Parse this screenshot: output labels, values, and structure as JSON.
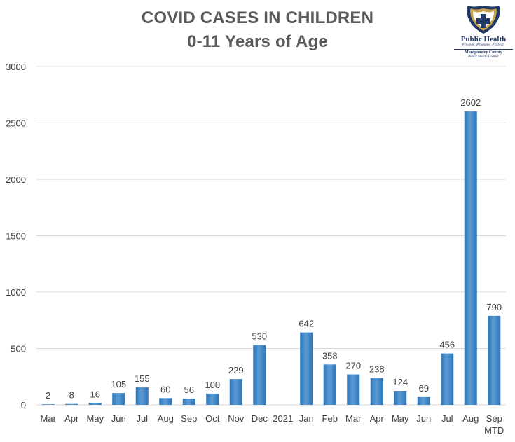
{
  "chart_data": {
    "type": "bar",
    "title": "COVID CASES IN CHILDREN",
    "subtitle": "0-11 Years of Age",
    "xlabel": "",
    "ylabel": "",
    "ylim": [
      0,
      3000
    ],
    "yticks": [
      0,
      500,
      1000,
      1500,
      2000,
      2500,
      3000
    ],
    "grid": true,
    "legend": "none",
    "categories": [
      "Mar",
      "Apr",
      "May",
      "Jun",
      "Jul",
      "Aug",
      "Sep",
      "Oct",
      "Nov",
      "Dec",
      "2021",
      "Jan",
      "Feb",
      "Mar",
      "Apr",
      "May",
      "Jun",
      "Jul",
      "Aug",
      "Sep MTD"
    ],
    "values": [
      2,
      8,
      16,
      105,
      155,
      60,
      56,
      100,
      229,
      530,
      null,
      642,
      358,
      270,
      238,
      124,
      69,
      456,
      2602,
      790
    ],
    "data_labels": [
      "2",
      "8",
      "16",
      "105",
      "155",
      "60",
      "56",
      "100",
      "229",
      "530",
      "",
      "642",
      "358",
      "270",
      "238",
      "124",
      "69",
      "456",
      "2602",
      "790"
    ]
  },
  "logo": {
    "name": "Public Health",
    "tagline": "Prevent. Promote. Protect.",
    "county": "Montgomery County",
    "district": "Public Health District"
  },
  "colors": {
    "bar": "#5b9bd5",
    "bar_dark": "#2e75b6",
    "grid": "#d9d9d9",
    "text": "#404040",
    "title": "#595959",
    "logo_navy": "#1f3864",
    "logo_gold": "#c9a24a"
  }
}
